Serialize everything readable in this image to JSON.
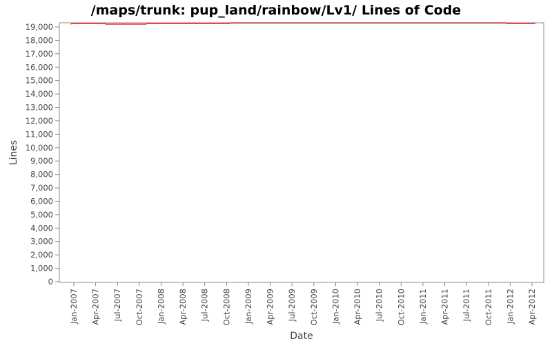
{
  "chart_data": {
    "type": "line",
    "title": "/maps/trunk: pup_land/rainbow/Lv1/ Lines of Code",
    "xlabel": "Date",
    "ylabel": "Lines",
    "ylim": [
      0,
      19300
    ],
    "xlim": [
      "2006-12-01",
      "2012-05-15"
    ],
    "grid": false,
    "legend": "none",
    "line_color": "#ff0000",
    "y_ticks": [
      "0",
      "1,000",
      "2,000",
      "3,000",
      "4,000",
      "5,000",
      "6,000",
      "7,000",
      "8,000",
      "9,000",
      "10,000",
      "11,000",
      "12,000",
      "13,000",
      "14,000",
      "15,000",
      "16,000",
      "17,000",
      "18,000",
      "19,000"
    ],
    "x_ticks": [
      "Jan-2007",
      "Apr-2007",
      "Jul-2007",
      "Oct-2007",
      "Jan-2008",
      "Apr-2008",
      "Jul-2008",
      "Oct-2008",
      "Jan-2009",
      "Apr-2009",
      "Jul-2009",
      "Oct-2009",
      "Jan-2010",
      "Apr-2010",
      "Jul-2010",
      "Oct-2010",
      "Jan-2011",
      "Apr-2011",
      "Jul-2011",
      "Oct-2011",
      "Jan-2012",
      "Apr-2012"
    ],
    "series": [
      {
        "x": [
          "2006-12-18",
          "2006-12-22",
          "2007-05-10",
          "2007-11-01",
          "2008-10-15",
          "2011-12-15",
          "2012-04-15"
        ],
        "y": [
          19220,
          19260,
          19210,
          19260,
          19300,
          19260,
          19260
        ]
      }
    ]
  }
}
